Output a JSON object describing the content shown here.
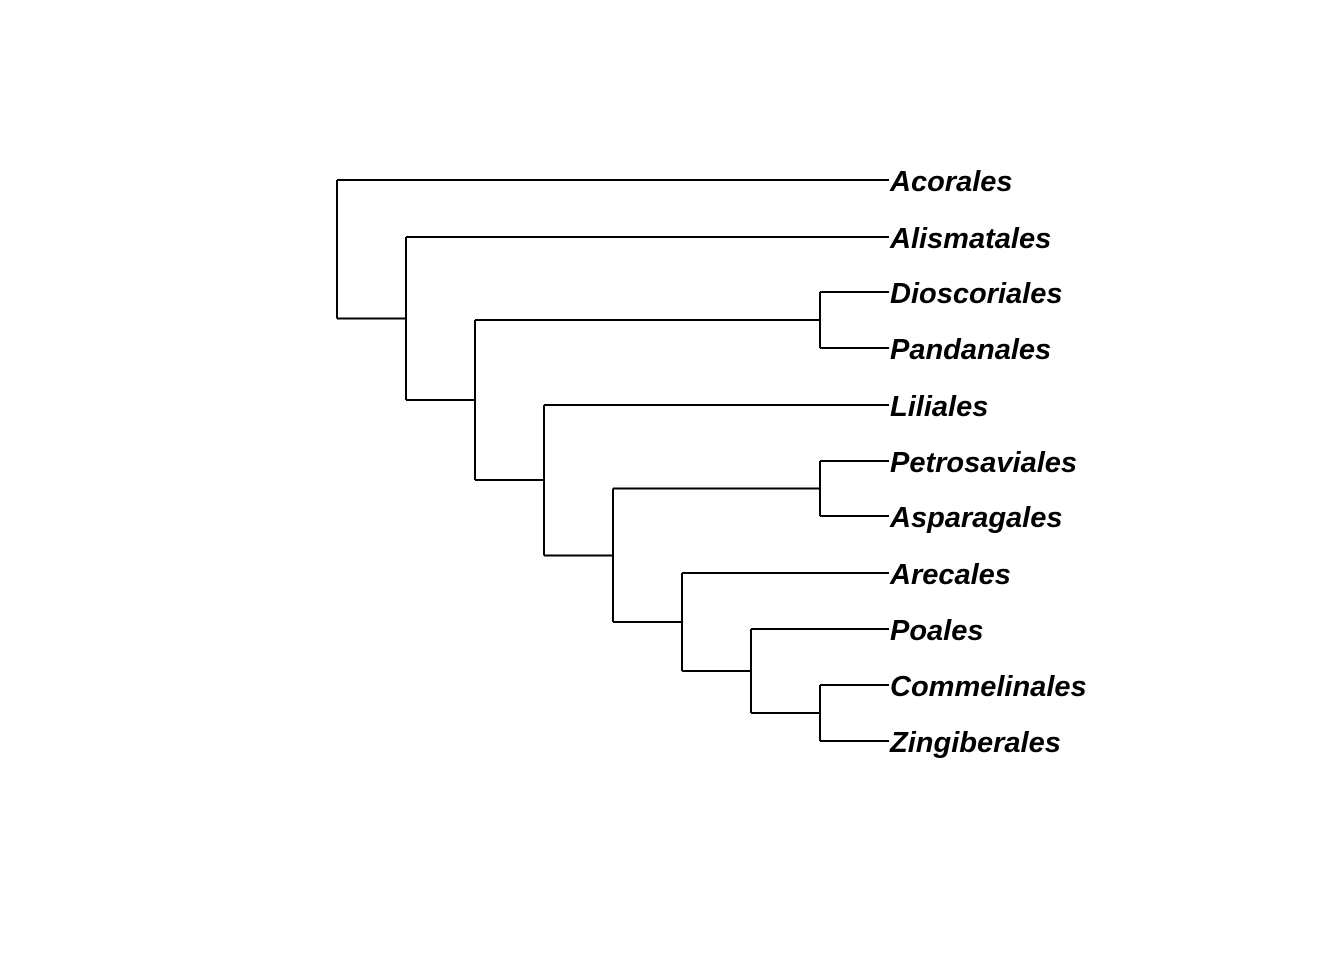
{
  "tree": {
    "tips": [
      "Acorales",
      "Alismatales",
      "Dioscoriales",
      "Pandanales",
      "Liliales",
      "Petrosaviales",
      "Asparagales",
      "Arecales",
      "Poales",
      "Commelinales",
      "Zingiberales"
    ],
    "topology": {
      "children": [
        {
          "tip": 0
        },
        {
          "children": [
            {
              "tip": 1
            },
            {
              "children": [
                {
                  "children": [
                    {
                      "tip": 2
                    },
                    {
                      "tip": 3
                    }
                  ]
                },
                {
                  "children": [
                    {
                      "tip": 4
                    },
                    {
                      "children": [
                        {
                          "children": [
                            {
                              "tip": 5
                            },
                            {
                              "tip": 6
                            }
                          ]
                        },
                        {
                          "children": [
                            {
                              "tip": 7
                            },
                            {
                              "children": [
                                {
                                  "tip": 8
                                },
                                {
                                  "children": [
                                    {
                                      "tip": 9
                                    },
                                    {
                                      "tip": 10
                                    }
                                  ]
                                }
                              ]
                            }
                          ]
                        }
                      ]
                    }
                  ]
                }
              ]
            }
          ]
        }
      ]
    },
    "colors": {
      "branch": "#000000",
      "label": "#000000"
    }
  }
}
